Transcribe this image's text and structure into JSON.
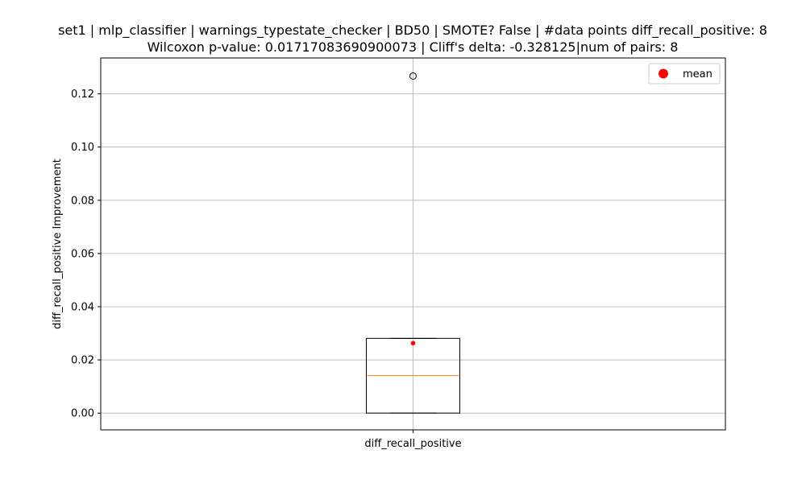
{
  "chart_data": {
    "type": "box",
    "title_line1": "set1 | mlp_classifier | warnings_typestate_checker | BD50 | SMOTE? False | #data points diff_recall_positive: 8",
    "title_line2": "Wilcoxon p-value: 0.01717083690900073 | Cliff's delta: -0.328125|num of pairs: 8",
    "xlabel": "",
    "ylabel": "diff_recall_positive Improvement",
    "ylim": [
      -0.0063,
      0.1335
    ],
    "yticks": [
      0.0,
      0.02,
      0.04,
      0.06,
      0.08,
      0.1,
      0.12
    ],
    "ytick_labels": [
      "0.00",
      "0.02",
      "0.04",
      "0.06",
      "0.08",
      "0.10",
      "0.12"
    ],
    "categories": [
      "diff_recall_positive"
    ],
    "boxes": [
      {
        "name": "diff_recall_positive",
        "whisker_low": 0.0,
        "q1": 0.0,
        "median": 0.0141,
        "q3": 0.0281,
        "whisker_high": 0.0281,
        "mean": 0.0263,
        "outliers": [
          0.1267
        ]
      }
    ],
    "grid": true,
    "legend": {
      "position": "top-right",
      "entries": [
        {
          "label": "mean"
        }
      ]
    },
    "colors": {
      "box": "#000000",
      "median": "#ff7f0e",
      "mean": "#ff0000",
      "grid": "#b0b0b0"
    }
  }
}
